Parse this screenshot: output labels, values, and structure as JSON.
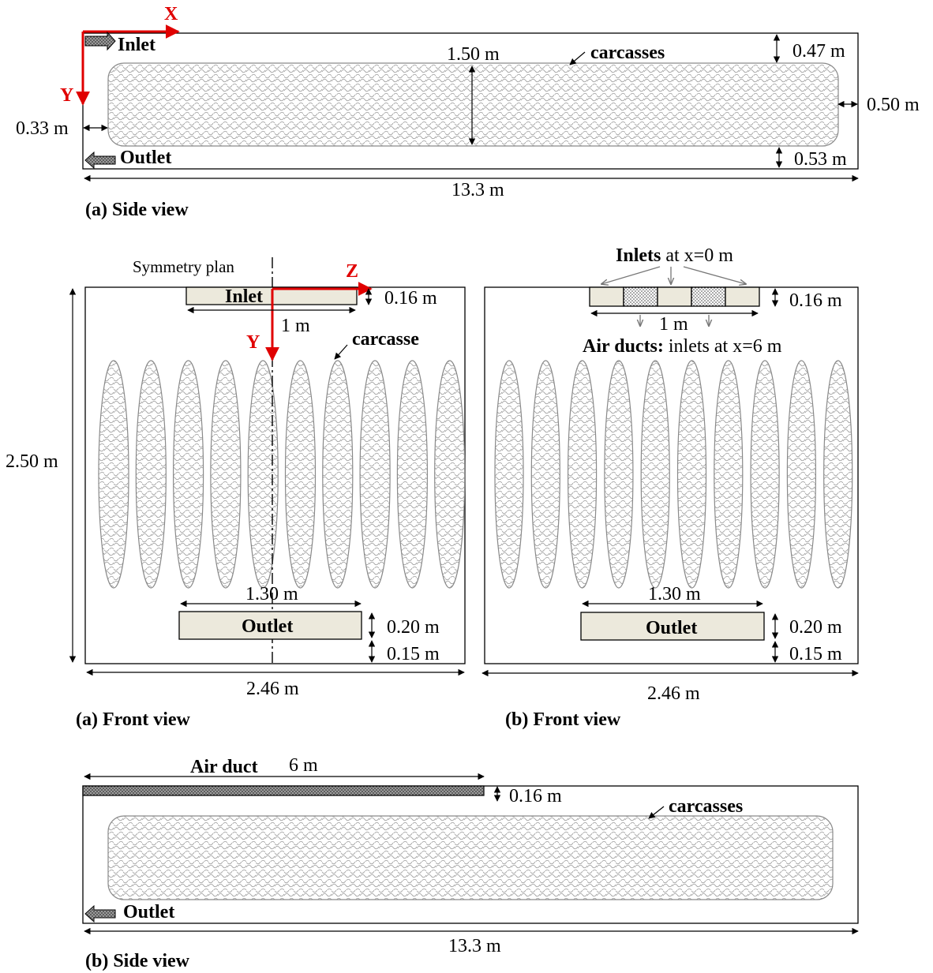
{
  "side_view_a": {
    "axis_x": "X",
    "axis_y": "Y",
    "inlet": "Inlet",
    "outlet": "Outlet",
    "height": "1.50 m",
    "carcasses": "carcasses",
    "top_gap": "0.47 m",
    "right_gap": "0.50 m",
    "left_gap": "0.33 m",
    "bottom_gap": "0.53 m",
    "length": "13.3 m",
    "caption": "(a) Side view"
  },
  "front_view_a": {
    "symmetry": "Symmetry plan",
    "axis_z": "Z",
    "axis_y": "Y",
    "inlet": "Inlet",
    "inlet_h": "0.16 m",
    "inlet_w": "1 m",
    "carcasse": "carcasse",
    "height": "2.50 m",
    "outlet_w": "1.30 m",
    "outlet": "Outlet",
    "outlet_h": "0.20 m",
    "outlet_gap": "0.15 m",
    "width": "2.46 m",
    "caption": "(a) Front view"
  },
  "front_view_b": {
    "inlets_title_bold": "Inlets",
    "inlets_title_rest": " at x=0 m",
    "inlet_h": "0.16 m",
    "inlet_w": "1 m",
    "ducts_bold": "Air ducts:",
    "ducts_rest": " inlets at x=6 m",
    "outlet_w": "1.30 m",
    "outlet": "Outlet",
    "outlet_h": "0.20 m",
    "outlet_gap": "0.15 m",
    "width": "2.46 m",
    "caption": "(b) Front view"
  },
  "side_view_b": {
    "air_duct": "Air duct",
    "duct_len": "6 m",
    "duct_h": "0.16 m",
    "carcasses": "carcasses",
    "outlet": "Outlet",
    "length": "13.3 m",
    "caption": "(b) Side view"
  }
}
